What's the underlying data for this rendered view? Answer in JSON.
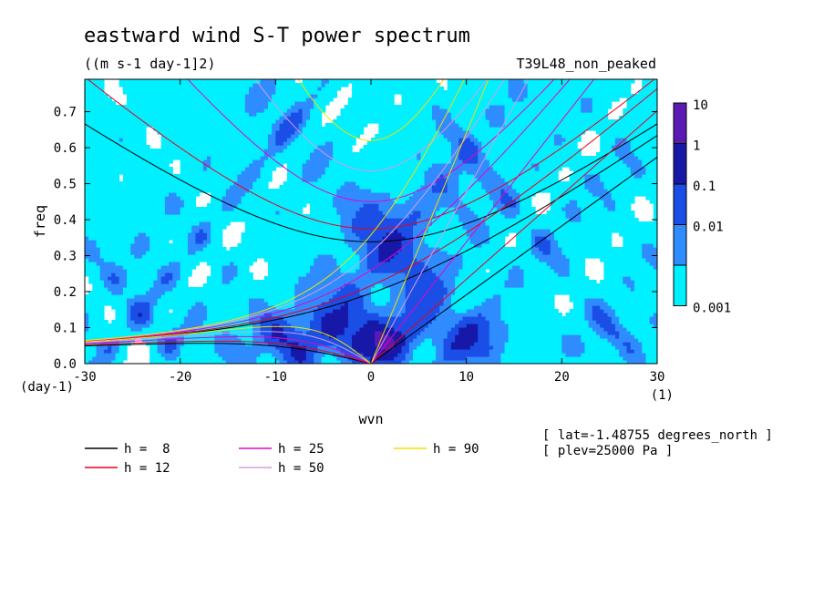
{
  "chart_data": {
    "type": "heatmap",
    "title": "eastward wind S-T power spectrum",
    "subtitle": "((m s-1 day-1]2)",
    "dataset_label": "T39L48_non_peaked",
    "xlabel": "wvn",
    "ylabel": "freq",
    "x_units": "(1)",
    "y_units": "(day-1)",
    "xlim": [
      -30,
      30
    ],
    "ylim": [
      0,
      0.79
    ],
    "x_ticks": [
      -30,
      -20,
      -10,
      0,
      10,
      20,
      30
    ],
    "y_ticks": [
      0.0,
      0.1,
      0.2,
      0.3,
      0.4,
      0.5,
      0.6,
      0.7
    ],
    "x_tick_labels": [
      "-30",
      "-20",
      "-10",
      "0",
      "10",
      "20",
      "30"
    ],
    "y_tick_labels": [
      "0.0",
      "0.1",
      "0.2",
      "0.3",
      "0.4",
      "0.5",
      "0.6",
      "0.7"
    ],
    "colorbar": {
      "levels": [
        "10",
        "1",
        "0.1",
        "0.01",
        "0.001"
      ],
      "colors": [
        "#5a1ab4",
        "#1818a8",
        "#1a4ee6",
        "#2f8cff",
        "#00f0ff"
      ],
      "scale": "log"
    },
    "fill_colors": {
      "below_min": "#ffffff",
      "l1": "#00f0ff",
      "l2": "#2f8cff",
      "l3": "#1a4ee6",
      "l4": "#1818a8",
      "l5": "#5a1ab4"
    },
    "dispersion_curves": [
      {
        "label": "h =  8",
        "h": 8,
        "color": "#000000"
      },
      {
        "label": "h = 12",
        "h": 12,
        "color": "#e8001c"
      },
      {
        "label": "h = 25",
        "h": 25,
        "color": "#e800c8"
      },
      {
        "label": "h = 50",
        "h": 50,
        "color": "#d69bea"
      },
      {
        "label": "h = 90",
        "h": 90,
        "color": "#f0e000"
      }
    ],
    "annotations": [
      "[ lat=-1.48755 degrees_north ]",
      "[ plev=25000 Pa ]"
    ],
    "grid": false,
    "legend_position": "bottom-left"
  }
}
